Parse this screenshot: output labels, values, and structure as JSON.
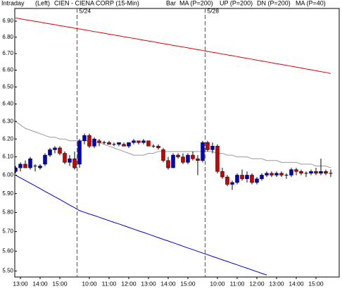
{
  "chart_data": {
    "type": "candlestick",
    "header": {
      "period": "Intraday",
      "side": "(Left)",
      "title": "CIEN - CIENA CORP (15-Min)",
      "style": "Bar"
    },
    "log_scale": true,
    "ylim": [
      5.47,
      6.98
    ],
    "yticks": [
      {
        "value": 6.9,
        "label": "6.90"
      },
      {
        "value": 6.8,
        "label": "6.80"
      },
      {
        "value": 6.7,
        "label": "6.70"
      },
      {
        "value": 6.6,
        "label": "6.60"
      },
      {
        "value": 6.5,
        "label": "6.50"
      },
      {
        "value": 6.4,
        "label": "6.40"
      },
      {
        "value": 6.3,
        "label": "6.30"
      },
      {
        "value": 6.2,
        "label": "6.20"
      },
      {
        "value": 6.1,
        "label": "6.10"
      },
      {
        "value": 6.0,
        "label": "6.00"
      },
      {
        "value": 5.9,
        "label": "5.90"
      },
      {
        "value": 5.8,
        "label": "5.80"
      },
      {
        "value": 5.7,
        "label": "5.70"
      },
      {
        "value": 5.6,
        "label": "5.60"
      },
      {
        "value": 5.5,
        "label": "5.50"
      }
    ],
    "categories": [
      null,
      "13:00",
      null,
      null,
      null,
      "14:00",
      null,
      null,
      null,
      "15:00",
      null,
      null,
      null,
      null,
      null,
      "10:00",
      null,
      null,
      null,
      "11:00",
      null,
      null,
      null,
      "12:00",
      null,
      null,
      null,
      "13:00",
      null,
      null,
      null,
      "14:00",
      null,
      null,
      null,
      "15:00",
      null,
      null,
      null,
      null,
      null,
      "10:00",
      null,
      null,
      null,
      "11:00",
      null,
      null,
      null,
      "12:00",
      null,
      null,
      null,
      "13:00",
      null,
      null,
      null,
      "14:00",
      null,
      null,
      null,
      "15:00",
      null,
      null,
      null
    ],
    "date_markers": [
      {
        "label": "5/24",
        "before": 13
      },
      {
        "label": "5/28",
        "before": 39
      }
    ],
    "up_color": "#0000cc",
    "down_color": "#cc0000",
    "flat_color": "#000000",
    "ohlc": {
      "open": [
        6.02,
        6.04,
        6.06,
        6.04,
        6.05,
        6.04,
        6.06,
        6.11,
        6.14,
        6.15,
        6.12,
        6.07,
        6.09,
        6.06,
        6.19,
        6.22,
        6.16,
        6.19,
        6.18,
        6.18,
        6.17,
        6.17,
        6.17,
        6.16,
        6.18,
        6.19,
        6.18,
        6.19,
        6.16,
        6.16,
        6.14,
        6.08,
        6.04,
        6.11,
        6.1,
        6.07,
        6.11,
        6.09,
        6.08,
        6.18,
        6.14,
        6.16,
        6.02,
        5.99,
        5.95,
        5.96,
        6.0,
        5.98,
        6.0,
        5.96,
        5.98,
        6.0,
        6.01,
        6.0,
        6.01,
        6.0,
        6.0,
        6.03,
        6.02,
        6.01,
        6.01,
        6.02,
        6.01,
        6.02,
        6.01
      ],
      "high": [
        6.05,
        6.07,
        6.08,
        6.1,
        6.06,
        6.06,
        6.12,
        6.15,
        6.16,
        6.16,
        6.13,
        6.11,
        6.13,
        6.2,
        6.23,
        6.23,
        6.21,
        6.2,
        6.19,
        6.19,
        6.18,
        6.18,
        6.18,
        6.18,
        6.2,
        6.19,
        6.2,
        6.19,
        6.17,
        6.17,
        6.15,
        6.1,
        6.12,
        6.12,
        6.12,
        6.12,
        6.13,
        6.11,
        6.19,
        6.19,
        6.18,
        6.17,
        6.04,
        6.0,
        5.97,
        6.01,
        6.03,
        6.02,
        6.01,
        5.99,
        6.01,
        6.02,
        6.02,
        6.02,
        6.02,
        6.01,
        6.04,
        6.04,
        6.03,
        6.02,
        6.03,
        6.04,
        6.09,
        6.03,
        6.03
      ],
      "low": [
        6.01,
        6.02,
        6.04,
        6.03,
        6.02,
        6.03,
        6.05,
        6.1,
        6.12,
        6.11,
        6.06,
        6.05,
        6.03,
        6.04,
        6.17,
        6.15,
        6.15,
        6.16,
        6.17,
        6.17,
        6.16,
        6.16,
        6.16,
        6.15,
        6.17,
        6.17,
        6.17,
        6.16,
        6.15,
        6.14,
        6.07,
        6.03,
        6.04,
        6.09,
        6.06,
        6.06,
        6.08,
        6.0,
        6.07,
        6.13,
        6.12,
        6.01,
        5.98,
        5.94,
        5.92,
        5.95,
        5.97,
        5.96,
        5.95,
        5.95,
        5.97,
        5.99,
        5.99,
        5.99,
        5.99,
        5.98,
        5.99,
        6.0,
        6.0,
        5.99,
        6.0,
        6.0,
        6.0,
        6.0,
        5.99
      ],
      "close": [
        6.04,
        6.06,
        6.04,
        6.09,
        6.05,
        6.05,
        6.11,
        6.14,
        6.15,
        6.12,
        6.07,
        6.09,
        6.04,
        6.19,
        6.22,
        6.16,
        6.2,
        6.18,
        6.18,
        6.17,
        6.17,
        6.18,
        6.16,
        6.18,
        6.19,
        6.18,
        6.19,
        6.16,
        6.16,
        6.15,
        6.08,
        6.04,
        6.11,
        6.1,
        6.07,
        6.11,
        6.09,
        6.08,
        6.18,
        6.14,
        6.16,
        6.02,
        5.99,
        5.95,
        5.96,
        6.0,
        5.98,
        6.0,
        5.96,
        5.98,
        6.0,
        6.01,
        6.0,
        6.01,
        6.0,
        6.0,
        6.03,
        6.02,
        6.01,
        6.01,
        6.02,
        6.01,
        6.02,
        6.01,
        6.01
      ]
    },
    "series": [
      {
        "name": "MA (P=200)",
        "color": "#e00000",
        "values": [
          6.92,
          6.915,
          6.909,
          6.904,
          6.899,
          6.894,
          6.888,
          6.883,
          6.878,
          6.872,
          6.867,
          6.862,
          6.856,
          6.851,
          6.846,
          6.841,
          6.835,
          6.83,
          6.825,
          6.819,
          6.814,
          6.809,
          6.803,
          6.798,
          6.793,
          6.788,
          6.782,
          6.777,
          6.772,
          6.766,
          6.761,
          6.756,
          6.75,
          6.745,
          6.74,
          6.735,
          6.729,
          6.724,
          6.719,
          6.713,
          6.708,
          6.703,
          6.697,
          6.692,
          6.687,
          6.682,
          6.676,
          6.671,
          6.666,
          6.66,
          6.655,
          6.65,
          6.644,
          6.639,
          6.634,
          6.629,
          6.623,
          6.618,
          6.613,
          6.607,
          6.602,
          6.597,
          6.591,
          6.586,
          6.58
        ]
      },
      {
        "name": "UP (P=200)",
        "color": "#00a000",
        "values": [
          null,
          null,
          null,
          null,
          null,
          null,
          null,
          null,
          null,
          null,
          null,
          null,
          null,
          null,
          null,
          null,
          null,
          null,
          null,
          null,
          null,
          null,
          null,
          null,
          null,
          null,
          null,
          null,
          null,
          null,
          null,
          null,
          null,
          null,
          null,
          null,
          null,
          null,
          null,
          null,
          null,
          null,
          null,
          null,
          null,
          null,
          null,
          null,
          null,
          null,
          null,
          null,
          null,
          null,
          null,
          null,
          null,
          null,
          null,
          null,
          null,
          null,
          null,
          null,
          null
        ]
      },
      {
        "name": "DN (P=200)",
        "color": "#0000cc",
        "values": [
          6.0,
          5.985,
          5.971,
          5.956,
          5.942,
          5.927,
          5.912,
          5.898,
          5.883,
          5.869,
          5.854,
          5.839,
          5.825,
          5.81,
          5.801,
          5.792,
          5.784,
          5.775,
          5.766,
          5.757,
          5.748,
          5.74,
          5.731,
          5.722,
          5.713,
          5.704,
          5.696,
          5.687,
          5.678,
          5.669,
          5.66,
          5.652,
          5.643,
          5.634,
          5.625,
          5.616,
          5.608,
          5.599,
          5.59,
          5.582,
          5.573,
          5.565,
          5.556,
          5.548,
          5.539,
          5.531,
          5.522,
          5.514,
          5.505,
          5.497,
          5.488,
          5.48,
          null,
          null,
          null,
          null,
          null,
          null,
          null,
          null,
          null,
          null,
          null,
          null,
          null
        ]
      },
      {
        "name": "MA (P=40)",
        "color": "#999999",
        "values": [
          6.3,
          6.28,
          6.26,
          6.25,
          6.24,
          6.23,
          6.22,
          6.21,
          6.21,
          6.2,
          6.2,
          6.19,
          6.19,
          6.19,
          6.19,
          6.19,
          6.18,
          6.18,
          6.17,
          6.16,
          6.15,
          6.14,
          6.13,
          6.12,
          6.11,
          6.11,
          6.11,
          6.12,
          6.12,
          6.13,
          6.13,
          6.13,
          6.13,
          6.13,
          6.13,
          6.13,
          6.13,
          6.13,
          6.13,
          6.13,
          6.13,
          6.12,
          6.12,
          6.11,
          6.11,
          6.1,
          6.1,
          6.1,
          6.09,
          6.09,
          6.09,
          6.08,
          6.08,
          6.08,
          6.07,
          6.07,
          6.07,
          6.07,
          6.06,
          6.06,
          6.06,
          6.05,
          6.05,
          6.05,
          6.04
        ]
      }
    ]
  }
}
